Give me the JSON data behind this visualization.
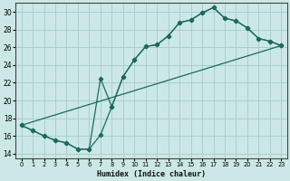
{
  "xlabel": "Humidex (Indice chaleur)",
  "background_color": "#cce8e6",
  "grid_color": "#aacfcd",
  "line_color": "#1a6b5a",
  "xlim": [
    -0.5,
    23.5
  ],
  "ylim": [
    13.5,
    31.0
  ],
  "xticks": [
    0,
    1,
    2,
    3,
    4,
    5,
    6,
    7,
    8,
    9,
    10,
    11,
    12,
    13,
    14,
    15,
    16,
    17,
    18,
    19,
    20,
    21,
    22,
    23
  ],
  "yticks": [
    14,
    16,
    18,
    20,
    22,
    24,
    26,
    28,
    30
  ],
  "line1_x": [
    0,
    1,
    2,
    3,
    4,
    5,
    6,
    7,
    8,
    9,
    10,
    11,
    12,
    13,
    14,
    15,
    16,
    17,
    18,
    19,
    20,
    21,
    22,
    23
  ],
  "line1_y": [
    17.2,
    16.6,
    16.0,
    15.5,
    15.2,
    14.5,
    14.5,
    16.1,
    19.3,
    22.7,
    24.6,
    26.1,
    26.3,
    27.3,
    28.8,
    29.1,
    29.9,
    30.5,
    29.3,
    29.0,
    28.2,
    27.0,
    26.7,
    26.2
  ],
  "line2_x": [
    0,
    1,
    2,
    3,
    4,
    5,
    6,
    7,
    8,
    9,
    10,
    11,
    12,
    13,
    14,
    15,
    16,
    17,
    18,
    19,
    20,
    21,
    22,
    23
  ],
  "line2_y": [
    17.2,
    16.6,
    16.0,
    15.5,
    15.2,
    14.5,
    14.5,
    22.5,
    19.3,
    22.7,
    24.6,
    26.1,
    26.3,
    27.3,
    28.8,
    29.1,
    29.9,
    30.5,
    29.3,
    29.0,
    28.2,
    27.0,
    26.7,
    26.2
  ],
  "line3_x": [
    0,
    23
  ],
  "line3_y": [
    17.2,
    26.2
  ]
}
